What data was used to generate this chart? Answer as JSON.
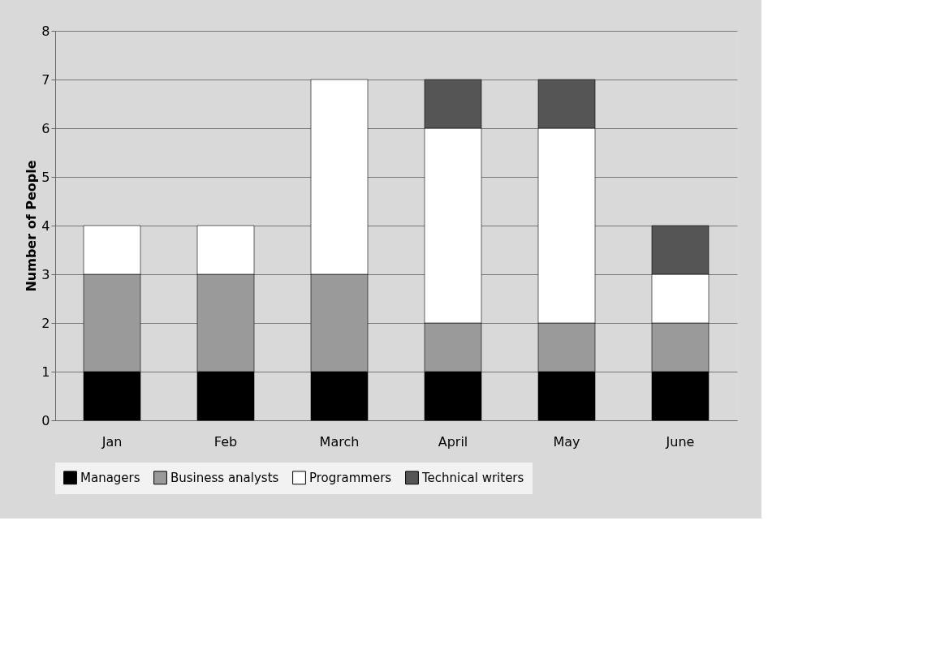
{
  "chart_data": {
    "type": "bar",
    "stacked": true,
    "ylabel": "Number of People",
    "categories": [
      "Jan",
      "Feb",
      "March",
      "April",
      "May",
      "June"
    ],
    "series": [
      {
        "name": "Managers",
        "color": "#000000",
        "values": [
          1,
          1,
          1,
          1,
          1,
          1
        ]
      },
      {
        "name": "Business analysts",
        "color": "#9a9a9a",
        "values": [
          2,
          2,
          2,
          1,
          1,
          1
        ]
      },
      {
        "name": "Programmers",
        "color": "#ffffff",
        "values": [
          1,
          1,
          4,
          4,
          4,
          1
        ]
      },
      {
        "name": "Technical writers",
        "color": "#555555",
        "values": [
          null,
          null,
          null,
          1,
          1,
          1
        ]
      }
    ],
    "ylim": [
      0,
      8
    ],
    "yticks": [
      0,
      1,
      2,
      3,
      4,
      5,
      6,
      7,
      8
    ],
    "grid": "y",
    "legend": "bottom"
  }
}
